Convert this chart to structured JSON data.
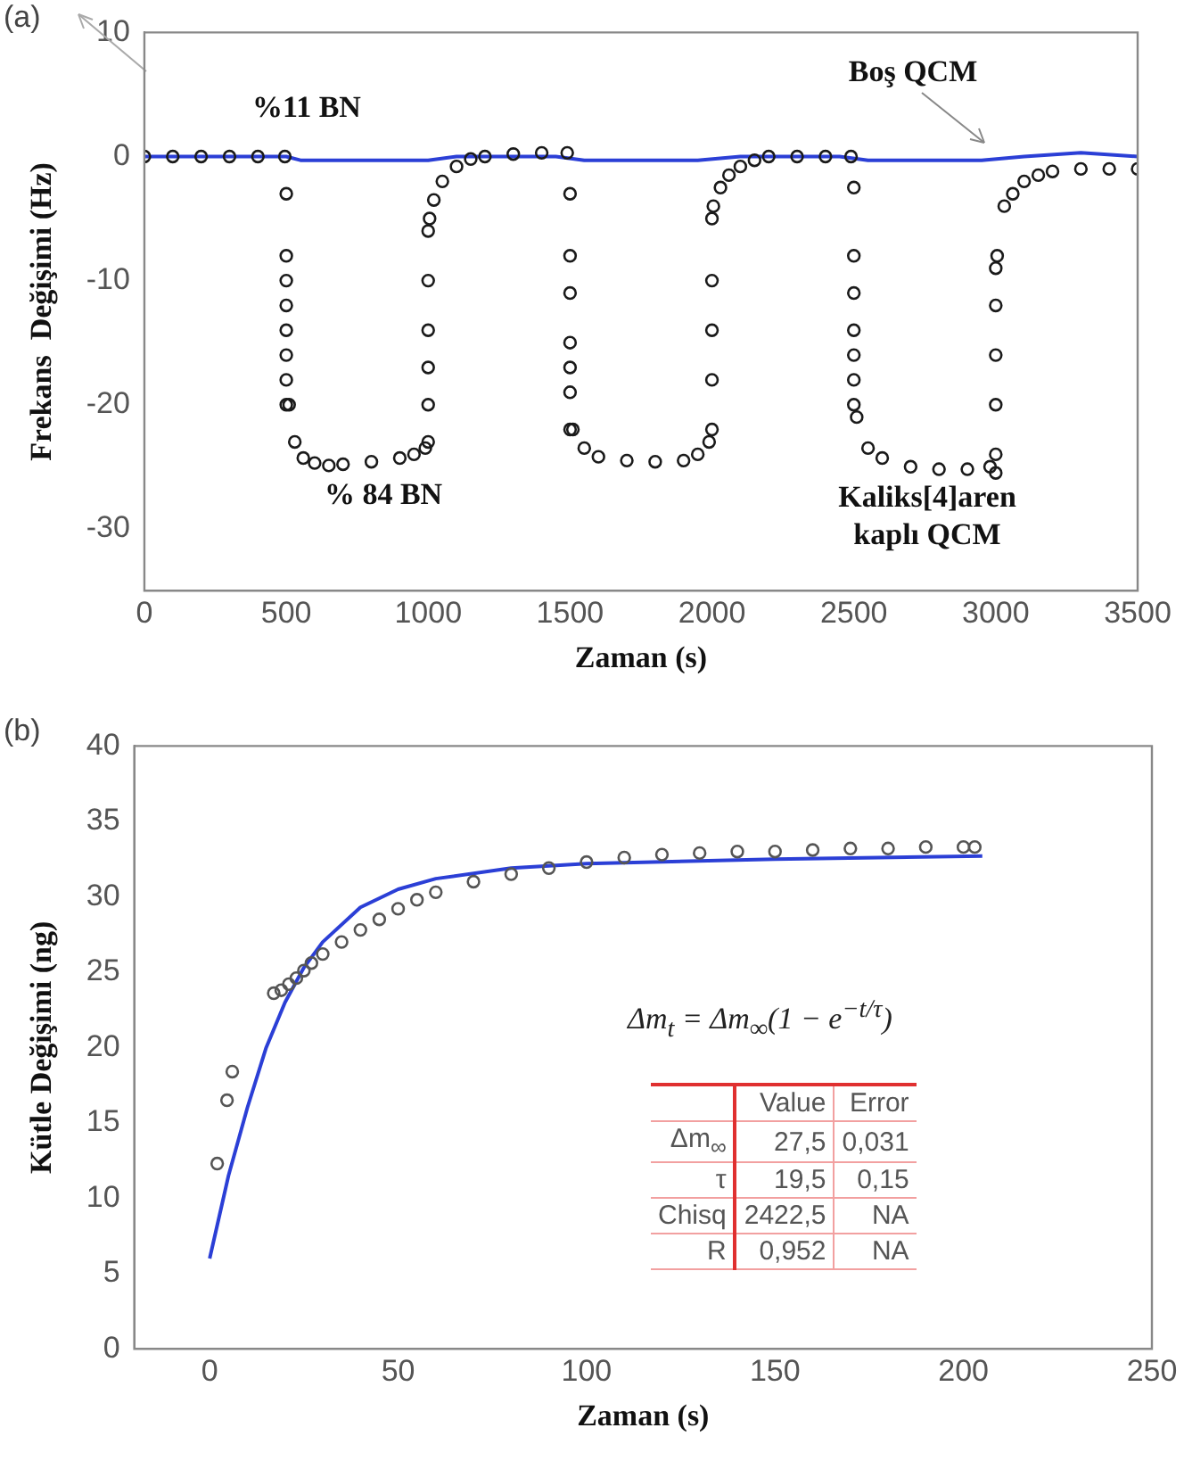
{
  "chart_data": [
    {
      "type": "scatter",
      "xlabel": "Zaman (s)",
      "ylabel": "Frekans  Değişimi (Hz)",
      "marker": "circle",
      "xlim": [
        0,
        3500
      ],
      "xticks": [
        0,
        500,
        1000,
        1500,
        2000,
        2500,
        3000,
        3500
      ],
      "ylim": [
        -35,
        10
      ],
      "yticks": [
        -30,
        -20,
        -10,
        0,
        10
      ],
      "annotations": [
        "(a)",
        "%11 BN",
        "% 84 BN",
        "Boş QCM",
        "Kaliks[4]aren\nkaplı QCM"
      ],
      "series": [
        {
          "color": "#1a1a1a",
          "x": [
            0,
            100,
            200,
            300,
            400,
            495,
            500,
            500,
            500,
            500,
            500,
            500,
            500,
            500,
            510,
            530,
            560,
            600,
            650,
            700,
            800,
            900,
            950,
            990,
            1000,
            1000,
            1000,
            1000,
            1000,
            1000,
            1005,
            1020,
            1050,
            1100,
            1150,
            1200,
            1300,
            1400,
            1490,
            1500,
            1500,
            1500,
            1500,
            1500,
            1500,
            1500,
            1510,
            1550,
            1600,
            1700,
            1800,
            1900,
            1950,
            1990,
            2000,
            2000,
            2000,
            2000,
            2000,
            2005,
            2030,
            2060,
            2100,
            2150,
            2200,
            2300,
            2400,
            2490,
            2500,
            2500,
            2500,
            2500,
            2500,
            2500,
            2500,
            2510,
            2550,
            2600,
            2700,
            2800,
            2900,
            2980,
            3000,
            3000,
            3000,
            3000,
            3000,
            3000,
            3005,
            3030,
            3060,
            3100,
            3150,
            3200,
            3300,
            3400,
            3500
          ],
          "values": [
            0,
            0,
            0,
            0,
            0,
            0,
            -3,
            -8,
            -10,
            -12,
            -14,
            -16,
            -18,
            -20,
            -20,
            -23,
            -24.3,
            -24.7,
            -24.9,
            -24.8,
            -24.6,
            -24.3,
            -24,
            -23.5,
            -23,
            -20,
            -17,
            -14,
            -10,
            -6,
            -5,
            -3.5,
            -2,
            -0.8,
            -0.2,
            0,
            0.2,
            0.3,
            0.3,
            -3,
            -8,
            -11,
            -15,
            -17,
            -19,
            -22,
            -22,
            -23.5,
            -24.2,
            -24.5,
            -24.6,
            -24.5,
            -24,
            -23,
            -22,
            -18,
            -14,
            -10,
            -5,
            -4,
            -2.5,
            -1.5,
            -0.8,
            -0.3,
            0,
            0,
            0,
            0,
            -2.5,
            -8,
            -11,
            -14,
            -16,
            -18,
            -20,
            -21,
            -23.5,
            -24.3,
            -25,
            -25.2,
            -25.2,
            -25,
            -25.5,
            -24,
            -20,
            -16,
            -12,
            -9,
            -8,
            -4,
            -3,
            -2,
            -1.5,
            -1.2,
            -1,
            -1,
            -1
          ]
        },
        {
          "type": "line",
          "marker": "none",
          "color": "#2b3fd6",
          "x": [
            0,
            500,
            550,
            1000,
            1100,
            1450,
            1550,
            1950,
            2100,
            2450,
            2550,
            2950,
            3100,
            3300,
            3500
          ],
          "values": [
            0,
            0,
            -0.3,
            -0.3,
            0,
            0,
            -0.3,
            -0.3,
            0,
            0,
            -0.3,
            -0.3,
            0,
            0.3,
            0
          ]
        }
      ]
    },
    {
      "type": "scatter",
      "xlabel": "Zaman (s)",
      "ylabel": "Kütle Değişimi (ng)",
      "marker": "circle",
      "xlim": [
        -20,
        250
      ],
      "xticks": [
        0,
        50,
        100,
        150,
        200,
        250
      ],
      "ylim": [
        0,
        40
      ],
      "yticks": [
        0,
        5,
        10,
        15,
        20,
        25,
        30,
        35,
        40
      ],
      "annotations": [
        "(b)",
        "Δm$_{t}$ = Δm$_{∞}$(1 − e$^{−t/τ}$)",
        "Value",
        "Error",
        "Δm$_{∞}$",
        "27,5",
        "0,031",
        "τ",
        "19,5",
        "0,15",
        "Chisq",
        "2422,5",
        "NA",
        "R",
        "0,952",
        "NA"
      ],
      "series": [
        {
          "color": "#555555",
          "x": [
            2,
            4.6,
            6,
            17,
            19,
            21,
            23,
            25,
            27,
            30,
            35,
            40,
            45,
            50,
            55,
            60,
            70,
            80,
            90,
            100,
            110,
            120,
            130,
            140,
            150,
            160,
            170,
            180,
            190,
            200,
            203
          ],
          "values": [
            12.3,
            16.5,
            18.4,
            23.6,
            23.8,
            24.2,
            24.6,
            25.1,
            25.6,
            26.2,
            27,
            27.8,
            28.5,
            29.2,
            29.8,
            30.3,
            31,
            31.5,
            31.9,
            32.3,
            32.6,
            32.8,
            32.9,
            33,
            33,
            33.1,
            33.2,
            33.2,
            33.3,
            33.3,
            33.3
          ]
        },
        {
          "type": "line",
          "marker": "none",
          "color": "#2b3fd6",
          "x": [
            0,
            5,
            10,
            15,
            20,
            25,
            30,
            40,
            50,
            60,
            80,
            100,
            150,
            205
          ],
          "values": [
            6,
            11.5,
            16,
            20,
            23,
            25.3,
            27,
            29.3,
            30.5,
            31.2,
            31.9,
            32.2,
            32.5,
            32.7
          ]
        }
      ]
    }
  ]
}
